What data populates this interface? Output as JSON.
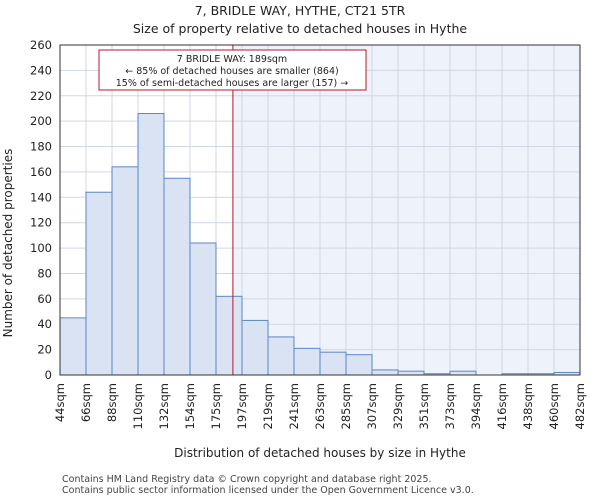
{
  "chart_data": {
    "type": "bar",
    "title": "7, BRIDLE WAY, HYTHE, CT21 5TR",
    "subtitle": "Size of property relative to detached houses in Hythe",
    "xlabel": "Distribution of detached houses by size in Hythe",
    "ylabel": "Number of detached properties",
    "bin_edges": [
      "44sqm",
      "66sqm",
      "88sqm",
      "110sqm",
      "132sqm",
      "154sqm",
      "175sqm",
      "197sqm",
      "219sqm",
      "241sqm",
      "263sqm",
      "285sqm",
      "307sqm",
      "329sqm",
      "351sqm",
      "373sqm",
      "394sqm",
      "416sqm",
      "438sqm",
      "460sqm",
      "482sqm"
    ],
    "values": [
      45,
      144,
      164,
      206,
      155,
      104,
      62,
      43,
      30,
      21,
      18,
      16,
      4,
      3,
      1,
      3,
      0,
      1,
      1,
      2
    ],
    "ylim": [
      0,
      260
    ],
    "yticks": [
      0,
      20,
      40,
      60,
      80,
      100,
      120,
      140,
      160,
      180,
      200,
      220,
      240,
      260
    ],
    "marker": {
      "value_sqm": 189,
      "bin_position": 6.65,
      "annotation": [
        "7 BRIDLE WAY: 189sqm",
        "← 85% of detached houses are smaller (864)",
        "15% of semi-detached houses are larger (157) →"
      ]
    },
    "colors": {
      "bar_fill": "#dae3f3",
      "bar_edge": "#5b87c5",
      "marker": "#b2182b",
      "shade": "#eef2fa"
    }
  },
  "footer": {
    "line1": "Contains HM Land Registry data © Crown copyright and database right 2025.",
    "line2": "Contains public sector information licensed under the Open Government Licence v3.0."
  }
}
